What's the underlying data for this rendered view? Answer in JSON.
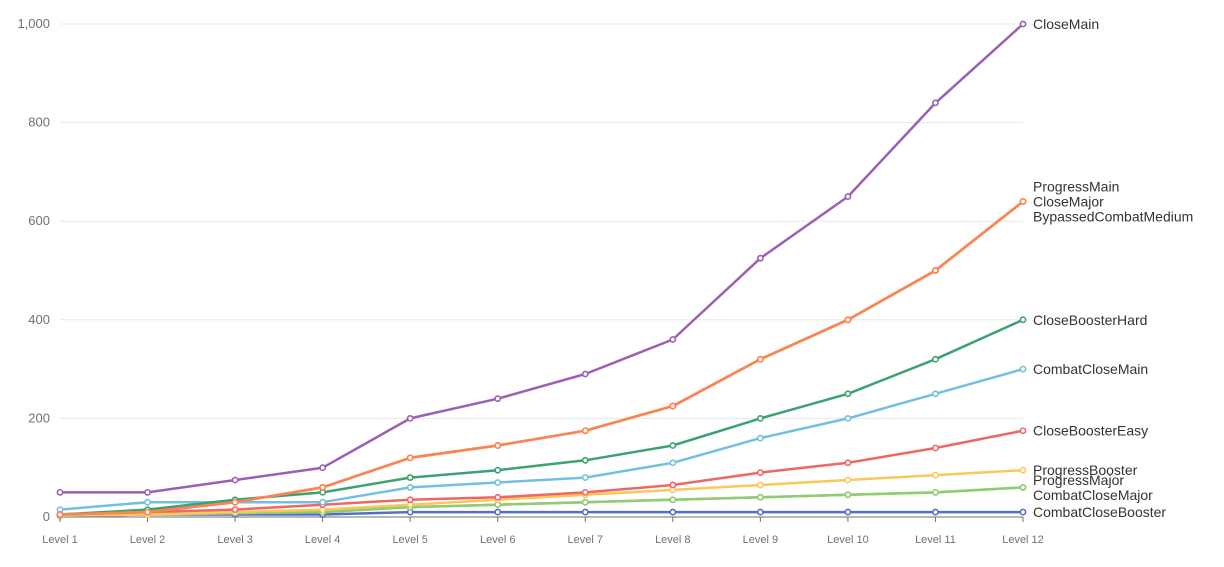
{
  "chart_data": {
    "type": "line",
    "title": "",
    "xlabel": "",
    "ylabel": "",
    "ylim": [
      0,
      1000
    ],
    "yticks": [
      0,
      200,
      400,
      600,
      800,
      1000
    ],
    "ytick_labels": [
      "0",
      "200",
      "400",
      "600",
      "800",
      "1,000"
    ],
    "grid": true,
    "legend": "end-of-line labels",
    "categories": [
      "Level 1",
      "Level 2",
      "Level 3",
      "Level 4",
      "Level 5",
      "Level 6",
      "Level 7",
      "Level 8",
      "Level 9",
      "Level 10",
      "Level 11",
      "Level 12"
    ],
    "series": [
      {
        "name": "CloseMain",
        "color": "#9a60b4",
        "values": [
          50,
          50,
          75,
          100,
          200,
          240,
          290,
          360,
          525,
          650,
          840,
          1000
        ]
      },
      {
        "name": "ProgressMain",
        "color": "#fc8452",
        "values": [
          5,
          10,
          30,
          60,
          120,
          145,
          175,
          225,
          320,
          400,
          500,
          640
        ]
      },
      {
        "name": "CloseMajor",
        "color": "#fc8452",
        "values": [
          5,
          10,
          30,
          60,
          120,
          145,
          175,
          225,
          320,
          400,
          500,
          640
        ]
      },
      {
        "name": "BypassedCombatMedium",
        "color": "#fc8452",
        "values": [
          5,
          10,
          30,
          60,
          120,
          145,
          175,
          225,
          320,
          400,
          500,
          640
        ]
      },
      {
        "name": "CloseBoosterHard",
        "color": "#3ba272",
        "values": [
          5,
          15,
          35,
          50,
          80,
          95,
          115,
          145,
          200,
          250,
          320,
          400
        ]
      },
      {
        "name": "CombatCloseMain",
        "color": "#73c0de",
        "values": [
          15,
          30,
          30,
          30,
          60,
          70,
          80,
          110,
          160,
          200,
          250,
          300
        ]
      },
      {
        "name": "CloseBoosterEasy",
        "color": "#ee6666",
        "values": [
          5,
          10,
          15,
          25,
          35,
          40,
          50,
          65,
          90,
          110,
          140,
          175
        ]
      },
      {
        "name": "ProgressBooster",
        "color": "#fac858",
        "values": [
          3,
          5,
          10,
          15,
          25,
          35,
          45,
          55,
          65,
          75,
          85,
          95
        ]
      },
      {
        "name": "ProgressMajor",
        "color": "#91cc75",
        "values": [
          3,
          5,
          8,
          10,
          20,
          25,
          30,
          35,
          40,
          45,
          50,
          60
        ]
      },
      {
        "name": "CombatCloseMajor",
        "color": "#91cc75",
        "values": [
          3,
          5,
          8,
          10,
          20,
          25,
          30,
          35,
          40,
          45,
          50,
          60
        ]
      },
      {
        "name": "CombatCloseBooster",
        "color": "#5470c6",
        "values": [
          2,
          5,
          5,
          5,
          10,
          10,
          10,
          10,
          10,
          10,
          10,
          10
        ]
      }
    ]
  }
}
